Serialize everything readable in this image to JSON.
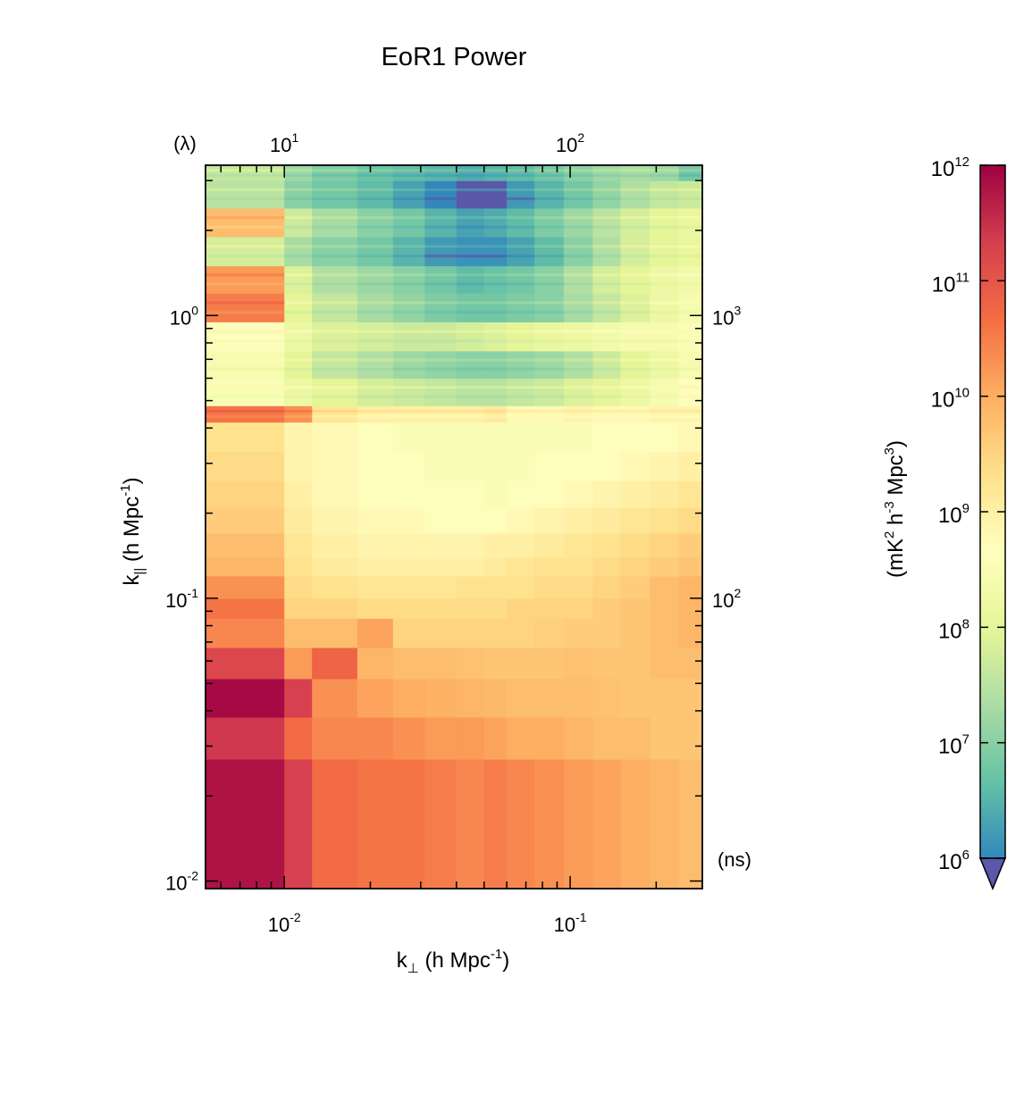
{
  "chart_data": {
    "type": "heatmap",
    "title": "EoR1 Power",
    "xlabel": {
      "base": "k",
      "sub": "⊥",
      "unit_open": " (h Mpc",
      "unit_sup": "-1",
      "unit_close": ")"
    },
    "ylabel": {
      "base": "k",
      "sub": "||",
      "unit_open": " (h Mpc",
      "unit_sup": "-1",
      "unit_close": ")"
    },
    "xlim": [
      0.0053,
      0.29
    ],
    "ylim": [
      0.0094,
      3.4
    ],
    "xscale": "log",
    "yscale": "log",
    "x_ticks": [
      {
        "value": 0.01,
        "base": "10",
        "exp": "-2"
      },
      {
        "value": 0.1,
        "base": "10",
        "exp": "-1"
      }
    ],
    "y_ticks": [
      {
        "value": 0.01,
        "base": "10",
        "exp": "-2"
      },
      {
        "value": 0.1,
        "base": "10",
        "exp": "-1"
      },
      {
        "value": 1,
        "base": "10",
        "exp": "0"
      }
    ],
    "top_axis": {
      "unit_label": "(λ)",
      "ticks": [
        {
          "value": 0.01,
          "base": "10",
          "exp": "1"
        },
        {
          "value": 0.1,
          "base": "10",
          "exp": "2"
        }
      ]
    },
    "right_axis": {
      "unit_label": "(ns)",
      "ticks": [
        {
          "value": 0.1,
          "base": "10",
          "exp": "2"
        },
        {
          "value": 1,
          "base": "10",
          "exp": "3"
        }
      ]
    },
    "colorbar": {
      "label": {
        "open": "(mK",
        "s1": "2",
        "mid1": " h",
        "s2": "-3",
        "mid2": " Mpc",
        "s3": "3",
        "close": ")"
      },
      "scale": "log",
      "range": [
        1000000,
        1000000000000
      ],
      "ticks": [
        {
          "value": 1000000,
          "base": "10",
          "exp": "6"
        },
        {
          "value": 10000000,
          "base": "10",
          "exp": "7"
        },
        {
          "value": 100000000,
          "base": "10",
          "exp": "8"
        },
        {
          "value": 1000000000,
          "base": "10",
          "exp": "9"
        },
        {
          "value": 10000000000,
          "base": "10",
          "exp": "10"
        },
        {
          "value": 100000000000,
          "base": "10",
          "exp": "11"
        },
        {
          "value": 1000000000000,
          "base": "10",
          "exp": "12"
        }
      ],
      "underflow_color": "#5a58a8",
      "colormap": [
        "#9e0142",
        "#d53e4f",
        "#f46d43",
        "#fdae61",
        "#fee08b",
        "#ffffbf",
        "#e6f598",
        "#abdda4",
        "#66c2a5",
        "#3288bd"
      ]
    },
    "grid": false,
    "x_bins": [
      0.0053,
      0.01,
      0.0125,
      0.018,
      0.024,
      0.031,
      0.04,
      0.05,
      0.06,
      0.075,
      0.095,
      0.12,
      0.15,
      0.19,
      0.24,
      0.29
    ],
    "y_bins": [
      0.0094,
      0.027,
      0.038,
      0.052,
      0.067,
      0.085,
      0.1,
      0.12,
      0.14,
      0.17,
      0.21,
      0.26,
      0.33,
      0.42,
      0.48,
      0.6,
      0.75,
      0.95,
      1.2,
      1.5,
      1.9,
      2.4,
      3.0,
      3.4
    ],
    "values_log10": [
      [
        11.8,
        11.3,
        10.7,
        10.6,
        10.6,
        10.5,
        10.4,
        10.5,
        10.4,
        10.3,
        10.2,
        10.1,
        10.0,
        9.9,
        9.8
      ],
      [
        11.4,
        10.7,
        10.4,
        10.4,
        10.3,
        10.2,
        10.2,
        10.1,
        10.0,
        10.0,
        9.9,
        9.8,
        9.8,
        9.7,
        9.7
      ],
      [
        11.9,
        11.3,
        10.3,
        10.1,
        10.0,
        9.95,
        9.9,
        9.85,
        9.8,
        9.8,
        9.8,
        9.75,
        9.7,
        9.7,
        9.7
      ],
      [
        11.2,
        10.2,
        10.8,
        9.9,
        9.8,
        9.8,
        9.75,
        9.7,
        9.7,
        9.7,
        9.75,
        9.7,
        9.7,
        9.8,
        9.8
      ],
      [
        10.4,
        9.8,
        9.8,
        10.1,
        9.5,
        9.5,
        9.5,
        9.5,
        9.5,
        9.55,
        9.6,
        9.6,
        9.7,
        9.8,
        9.9
      ],
      [
        10.6,
        9.5,
        9.5,
        9.4,
        9.4,
        9.4,
        9.4,
        9.4,
        9.5,
        9.5,
        9.5,
        9.6,
        9.7,
        9.8,
        9.9
      ],
      [
        10.3,
        9.4,
        9.3,
        9.2,
        9.2,
        9.2,
        9.3,
        9.3,
        9.3,
        9.4,
        9.4,
        9.5,
        9.6,
        9.8,
        9.9
      ],
      [
        9.9,
        9.3,
        9.1,
        9.0,
        9.0,
        9.0,
        9.0,
        9.1,
        9.2,
        9.3,
        9.3,
        9.4,
        9.5,
        9.6,
        9.7
      ],
      [
        9.8,
        9.2,
        9.0,
        8.9,
        8.9,
        8.9,
        8.9,
        9.0,
        9.0,
        9.1,
        9.2,
        9.3,
        9.4,
        9.5,
        9.6
      ],
      [
        9.6,
        9.1,
        8.9,
        8.8,
        8.8,
        8.7,
        8.7,
        8.7,
        8.8,
        8.9,
        9.0,
        9.1,
        9.2,
        9.3,
        9.4
      ],
      [
        9.5,
        9.0,
        8.8,
        8.7,
        8.6,
        8.6,
        8.6,
        8.5,
        8.6,
        8.7,
        8.8,
        8.9,
        9.0,
        9.1,
        9.2
      ],
      [
        9.4,
        8.9,
        8.8,
        8.6,
        8.6,
        8.5,
        8.5,
        8.5,
        8.5,
        8.6,
        8.6,
        8.7,
        8.8,
        8.9,
        9.0
      ],
      [
        9.3,
        8.9,
        8.8,
        8.6,
        8.5,
        8.5,
        8.5,
        8.5,
        8.5,
        8.5,
        8.5,
        8.6,
        8.6,
        8.7,
        8.8
      ],
      [
        10.6,
        10.3,
        9.2,
        9.0,
        9.0,
        9.0,
        9.0,
        9.1,
        8.8,
        8.8,
        8.9,
        8.8,
        8.8,
        8.9,
        8.9
      ],
      [
        8.5,
        8.2,
        8.0,
        7.8,
        7.7,
        7.6,
        7.5,
        7.5,
        7.6,
        7.7,
        7.9,
        8.0,
        8.2,
        8.4,
        8.6
      ],
      [
        8.4,
        8.0,
        7.6,
        7.4,
        7.2,
        7.1,
        7.0,
        7.0,
        7.1,
        7.2,
        7.4,
        7.7,
        8.0,
        8.2,
        8.4
      ],
      [
        8.6,
        8.2,
        7.9,
        7.8,
        7.7,
        7.7,
        7.8,
        7.9,
        8.0,
        8.1,
        8.2,
        8.3,
        8.4,
        8.4,
        8.5
      ],
      [
        10.5,
        8.0,
        7.6,
        7.3,
        7.1,
        6.9,
        6.8,
        6.8,
        6.9,
        7.0,
        7.3,
        7.6,
        7.9,
        8.2,
        8.4
      ],
      [
        10.2,
        7.9,
        7.4,
        7.2,
        7.0,
        6.8,
        6.6,
        6.7,
        6.8,
        7.0,
        7.4,
        7.8,
        8.0,
        8.2,
        8.3
      ],
      [
        7.8,
        7.3,
        7.0,
        6.8,
        6.5,
        6.2,
        6.1,
        6.1,
        6.3,
        6.6,
        7.0,
        7.4,
        7.8,
        8.0,
        8.1
      ],
      [
        9.8,
        7.7,
        7.3,
        7.0,
        6.8,
        6.5,
        6.3,
        6.4,
        6.6,
        6.9,
        7.2,
        7.5,
        7.8,
        8.0,
        8.1
      ],
      [
        7.5,
        7.0,
        6.8,
        6.6,
        6.3,
        6.0,
        5.9,
        5.9,
        6.2,
        6.5,
        6.8,
        7.1,
        7.4,
        7.6,
        7.7
      ],
      [
        7.6,
        7.2,
        6.9,
        6.7,
        6.6,
        6.5,
        6.4,
        6.5,
        6.6,
        6.8,
        7.0,
        7.2,
        7.3,
        7.2,
        6.8
      ]
    ]
  }
}
